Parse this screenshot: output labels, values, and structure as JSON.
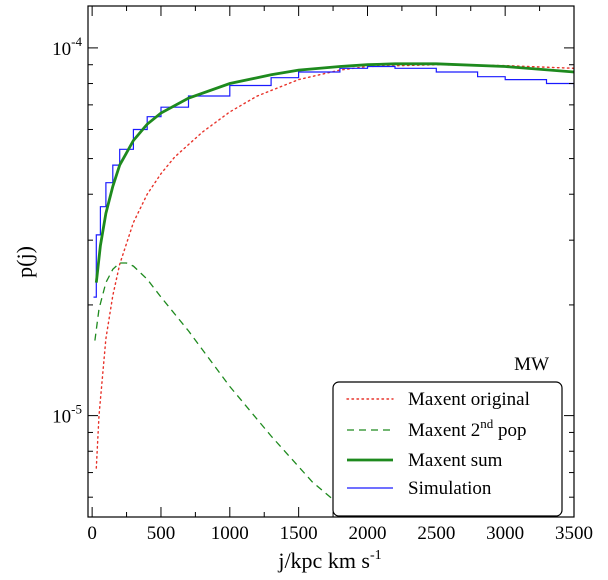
{
  "chart_data": {
    "type": "line",
    "xlabel": {
      "main": "j/kpc km s",
      "sup": "-1"
    },
    "ylabel": "p(j)",
    "xlim": [
      -30,
      3500
    ],
    "ylim": [
      5.3e-06,
      0.00013
    ],
    "yscale": "log",
    "grid": false,
    "x_ticks": [
      0,
      500,
      1000,
      1500,
      2000,
      2500,
      3000,
      3500
    ],
    "x_tick_labels": [
      "0",
      "500",
      "1000",
      "1500",
      "2000",
      "2500",
      "3000",
      "3500"
    ],
    "y_ticks": [
      {
        "value": 0.0001,
        "base": "10",
        "exp": "-4"
      },
      {
        "value": 1e-05,
        "base": "10",
        "exp": "-5"
      }
    ],
    "annotation": "MW",
    "legend": {
      "position": "bottom-right",
      "entries": [
        {
          "main": "Maxent original",
          "sup": "",
          "tail": ""
        },
        {
          "main": "Maxent 2",
          "sup": "nd",
          "tail": " pop"
        },
        {
          "main": "Maxent sum",
          "sup": "",
          "tail": ""
        },
        {
          "main": "Simulation",
          "sup": "",
          "tail": ""
        }
      ]
    },
    "series": [
      {
        "name": "Maxent original",
        "color": "#e8332a",
        "style": "dotted",
        "x": [
          30,
          50,
          100,
          150,
          200,
          300,
          400,
          500,
          600,
          800,
          1000,
          1200,
          1500,
          1800,
          2000,
          2500,
          3000,
          3500
        ],
        "y": [
          7.2e-06,
          1e-05,
          1.62e-05,
          2.12e-05,
          2.58e-05,
          3.35e-05,
          4e-05,
          4.55e-05,
          5.05e-05,
          5.9e-05,
          6.7e-05,
          7.4e-05,
          8.2e-05,
          8.7e-05,
          8.9e-05,
          9e-05,
          8.95e-05,
          8.8e-05
        ]
      },
      {
        "name": "Maxent 2nd pop",
        "color": "#1e8a1e",
        "style": "dashed",
        "x": [
          20,
          50,
          100,
          150,
          200,
          250,
          300,
          400,
          500,
          700,
          1000,
          1300,
          1600,
          1900
        ],
        "y": [
          1.6e-05,
          1.95e-05,
          2.3e-05,
          2.5e-05,
          2.6e-05,
          2.6e-05,
          2.55e-05,
          2.35e-05,
          2.1e-05,
          1.7e-05,
          1.2e-05,
          8.8e-06,
          6.6e-06,
          5.3e-06
        ]
      },
      {
        "name": "Maxent sum",
        "color": "#1e8a1e",
        "style": "solid",
        "x": [
          30,
          60,
          100,
          150,
          200,
          300,
          400,
          500,
          700,
          1000,
          1300,
          1500,
          1800,
          2000,
          2200,
          2500,
          3000,
          3500
        ],
        "y": [
          2.3e-05,
          2.9e-05,
          3.55e-05,
          4.2e-05,
          4.8e-05,
          5.6e-05,
          6.2e-05,
          6.65e-05,
          7.3e-05,
          8e-05,
          8.45e-05,
          8.7e-05,
          8.9e-05,
          9e-05,
          9.05e-05,
          9.05e-05,
          8.9e-05,
          8.6e-05
        ]
      },
      {
        "name": "Simulation",
        "color": "#1a1aff",
        "style": "step",
        "x": [
          10,
          30,
          60,
          100,
          150,
          200,
          300,
          400,
          500,
          700,
          1000,
          1300,
          1500,
          1800,
          2000,
          2200,
          2500,
          2800,
          3000,
          3300,
          3500
        ],
        "y": [
          2.1e-05,
          3.1e-05,
          3.7e-05,
          4.3e-05,
          4.8e-05,
          5.3e-05,
          6e-05,
          6.5e-05,
          6.9e-05,
          7.4e-05,
          7.9e-05,
          8.3e-05,
          8.6e-05,
          8.8e-05,
          8.9e-05,
          8.8e-05,
          8.6e-05,
          8.35e-05,
          8.2e-05,
          8e-05,
          7.8e-05
        ]
      }
    ]
  }
}
